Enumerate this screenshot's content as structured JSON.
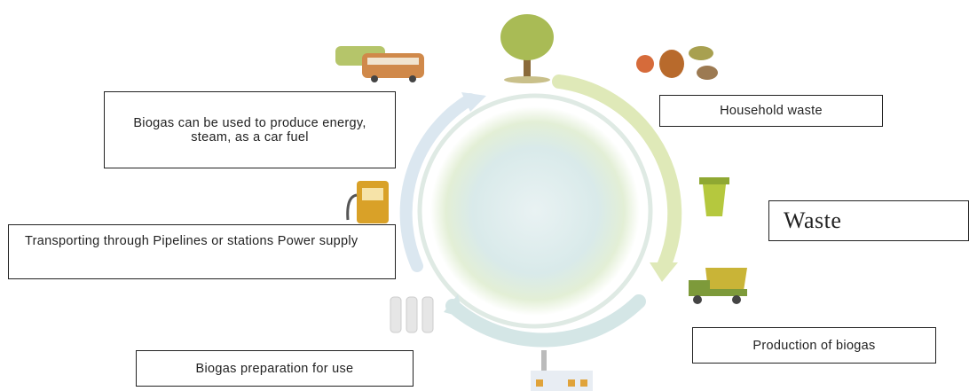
{
  "boxes": {
    "use": "Biogas can be used to produce energy, steam, as a car fuel",
    "household": "Household waste",
    "waste": "Waste",
    "transport": "Transporting through Pipelines or stations Power supply",
    "production": "Production of biogas",
    "preparation": "Biogas preparation for use"
  }
}
